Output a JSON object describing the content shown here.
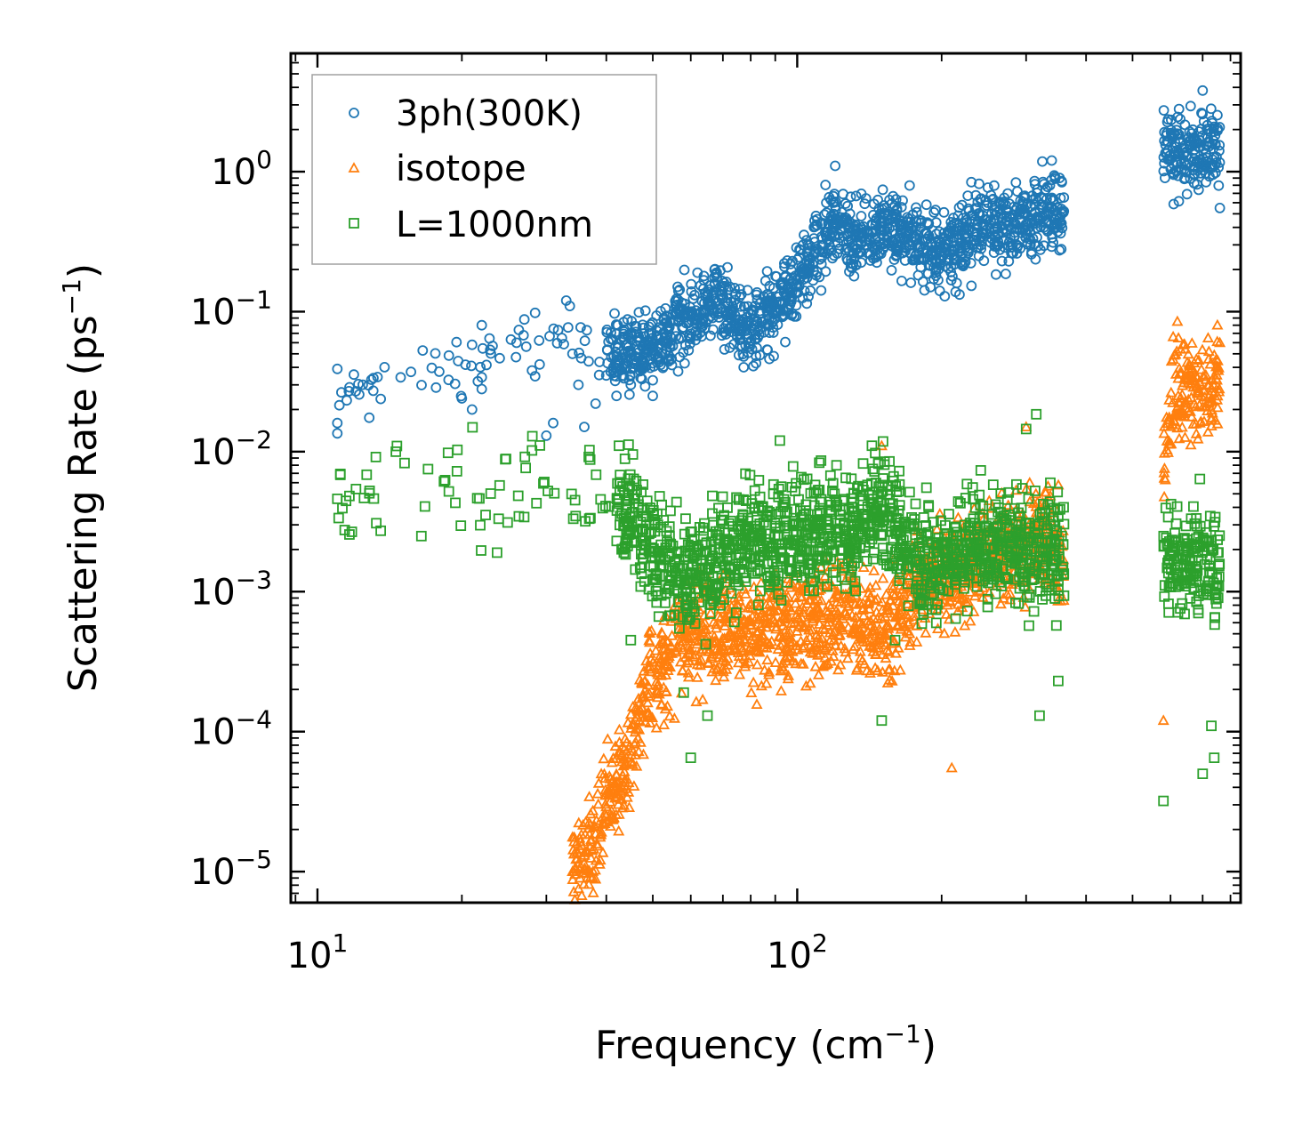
{
  "chart_data": {
    "type": "scatter",
    "xscale": "log",
    "yscale": "log",
    "xlim": [
      8.8,
      840
    ],
    "ylim": [
      6e-06,
      7.0
    ],
    "xlabel": "Frequency",
    "xlabel_unit": "(cm",
    "xlabel_unit_exp": "−1",
    "xlabel_unit_close": ")",
    "ylabel": "Scattering Rate",
    "ylabel_unit": "(ps",
    "ylabel_unit_exp": "−1",
    "ylabel_unit_close": ")",
    "x_ticks": [
      {
        "value": 10,
        "base": "10",
        "exp": "1"
      },
      {
        "value": 100,
        "base": "10",
        "exp": "2"
      }
    ],
    "y_ticks": [
      {
        "value": 1,
        "base": "10",
        "exp": "0"
      },
      {
        "value": 0.1,
        "base": "10",
        "exp": "−1"
      },
      {
        "value": 0.01,
        "base": "10",
        "exp": "−2"
      },
      {
        "value": 0.001,
        "base": "10",
        "exp": "−3"
      },
      {
        "value": 0.0001,
        "base": "10",
        "exp": "−4"
      },
      {
        "value": 1e-05,
        "base": "10",
        "exp": "−5"
      }
    ],
    "legend_position": "top-left",
    "series": [
      {
        "name": "3ph(300K)",
        "marker": "circle",
        "color": "#1f77b4",
        "trend_x": [
          11,
          18,
          25,
          32,
          40,
          48,
          55,
          62,
          68,
          75,
          82,
          90,
          100,
          110,
          120,
          130,
          140,
          160,
          180,
          200,
          220,
          250,
          280,
          310,
          360,
          580,
          600,
          650,
          700,
          760
        ],
        "trend_y": [
          0.02,
          0.04,
          0.06,
          0.06,
          0.05,
          0.05,
          0.08,
          0.1,
          0.13,
          0.08,
          0.08,
          0.11,
          0.17,
          0.28,
          0.45,
          0.32,
          0.35,
          0.4,
          0.3,
          0.26,
          0.32,
          0.45,
          0.4,
          0.48,
          0.55,
          1.3,
          1.5,
          1.2,
          1.5,
          1.3
        ],
        "spread_dex": 0.22,
        "outliers": [
          {
            "x": 11,
            "y": 0.039
          },
          {
            "x": 11,
            "y": 0.016
          },
          {
            "x": 11,
            "y": 0.0135
          },
          {
            "x": 20,
            "y": 0.024
          },
          {
            "x": 21,
            "y": 0.02
          },
          {
            "x": 21,
            "y": 0.058
          },
          {
            "x": 22,
            "y": 0.08
          },
          {
            "x": 22,
            "y": 0.034
          },
          {
            "x": 22,
            "y": 0.028
          },
          {
            "x": 26,
            "y": 0.06
          },
          {
            "x": 27,
            "y": 0.088
          },
          {
            "x": 28,
            "y": 0.038
          },
          {
            "x": 30,
            "y": 0.013
          },
          {
            "x": 31,
            "y": 0.016
          },
          {
            "x": 33,
            "y": 0.12
          },
          {
            "x": 34,
            "y": 0.05
          },
          {
            "x": 35,
            "y": 0.03
          },
          {
            "x": 36,
            "y": 0.015
          },
          {
            "x": 38,
            "y": 0.022
          },
          {
            "x": 40,
            "y": 0.035
          },
          {
            "x": 42,
            "y": 0.025
          },
          {
            "x": 45,
            "y": 0.03
          },
          {
            "x": 50,
            "y": 0.025
          },
          {
            "x": 120,
            "y": 1.1
          },
          {
            "x": 625,
            "y": 2.8
          },
          {
            "x": 700,
            "y": 3.8
          },
          {
            "x": 760,
            "y": 0.55
          }
        ]
      },
      {
        "name": "isotope",
        "marker": "triangle",
        "color": "#ff7f0e",
        "trend_x": [
          34,
          38,
          42,
          46,
          50,
          55,
          60,
          70,
          80,
          90,
          100,
          110,
          120,
          130,
          140,
          150,
          160,
          180,
          200,
          220,
          250,
          280,
          310,
          360,
          580,
          600,
          650,
          700,
          760
        ],
        "trend_y": [
          1e-05,
          1.8e-05,
          4e-05,
          0.0001,
          0.00025,
          0.0004,
          0.0005,
          0.0005,
          0.0005,
          0.0006,
          0.0006,
          0.0006,
          0.0007,
          0.0008,
          0.0006,
          0.0005,
          0.0006,
          0.001,
          0.0012,
          0.0014,
          0.002,
          0.002,
          0.0025,
          0.002,
          0.008,
          0.02,
          0.03,
          0.025,
          0.035
        ],
        "spread_dex": 0.3,
        "outliers": [
          {
            "x": 34,
            "y": 1e-05
          },
          {
            "x": 37,
            "y": 1.5e-05
          },
          {
            "x": 40,
            "y": 2.5e-05
          },
          {
            "x": 150,
            "y": 0.011
          },
          {
            "x": 210,
            "y": 5.5e-05
          },
          {
            "x": 300,
            "y": 0.015
          },
          {
            "x": 620,
            "y": 0.085
          },
          {
            "x": 580,
            "y": 0.00012
          },
          {
            "x": 760,
            "y": 0.06
          }
        ]
      },
      {
        "name": "L=1000nm",
        "marker": "square",
        "color": "#2ca02c",
        "trend_x": [
          11,
          17,
          20,
          22,
          27,
          32,
          37,
          42,
          47,
          50,
          55,
          60,
          70,
          80,
          90,
          100,
          110,
          120,
          130,
          140,
          150,
          160,
          180,
          200,
          220,
          250,
          280,
          310,
          360,
          580,
          600,
          650,
          700,
          760
        ],
        "trend_y": [
          0.0048,
          0.007,
          0.0055,
          0.0045,
          0.0053,
          0.005,
          0.0045,
          0.004,
          0.003,
          0.002,
          0.0015,
          0.0012,
          0.002,
          0.0025,
          0.002,
          0.0025,
          0.0025,
          0.003,
          0.0025,
          0.004,
          0.004,
          0.003,
          0.0015,
          0.0015,
          0.002,
          0.002,
          0.002,
          0.002,
          0.002,
          0.0015,
          0.0018,
          0.0015,
          0.0018,
          0.0015
        ],
        "spread_dex": 0.32,
        "outliers": [
          {
            "x": 11,
            "y": 0.0046
          },
          {
            "x": 17,
            "y": 0.0075
          },
          {
            "x": 28,
            "y": 0.0102
          },
          {
            "x": 45,
            "y": 0.00045
          },
          {
            "x": 58,
            "y": 0.00019
          },
          {
            "x": 60,
            "y": 6.5e-05
          },
          {
            "x": 65,
            "y": 0.00013
          },
          {
            "x": 92,
            "y": 0.012
          },
          {
            "x": 150,
            "y": 0.00012
          },
          {
            "x": 160,
            "y": 0.00045
          },
          {
            "x": 300,
            "y": 0.0145
          },
          {
            "x": 315,
            "y": 0.0185
          },
          {
            "x": 320,
            "y": 0.00013
          },
          {
            "x": 350,
            "y": 0.00023
          },
          {
            "x": 580,
            "y": 3.2e-05
          },
          {
            "x": 700,
            "y": 5e-05
          },
          {
            "x": 740,
            "y": 6.5e-05
          },
          {
            "x": 730,
            "y": 0.00011
          }
        ]
      }
    ]
  }
}
